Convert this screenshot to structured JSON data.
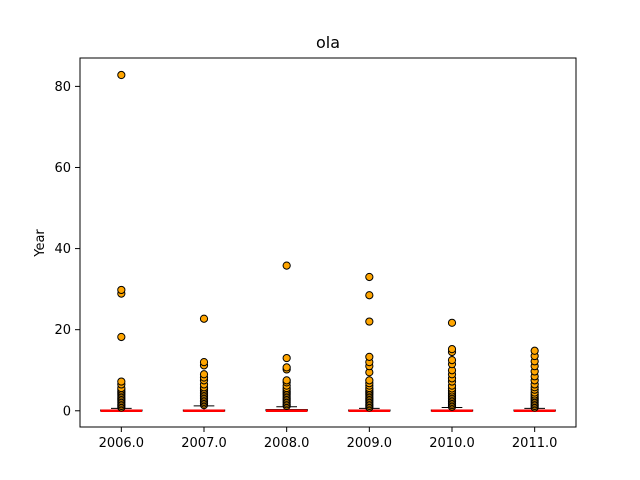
{
  "chart_data": {
    "type": "box",
    "title": "ola",
    "xlabel": "",
    "ylabel": "Year",
    "ylim": [
      -4,
      87
    ],
    "yticks": [
      0,
      20,
      40,
      60,
      80
    ],
    "grid": false,
    "colors": {
      "median": "#ff0000",
      "flier_fill": "#ffa500",
      "flier_edge": "#000000",
      "box": "#000000"
    },
    "categories": [
      "2006.0",
      "2007.0",
      "2008.0",
      "2009.0",
      "2010.0",
      "2011.0"
    ],
    "boxes": [
      {
        "label": "2006.0",
        "q1": 0.0,
        "median": 0.0,
        "q3": 0.2,
        "whisker_low": 0.0,
        "whisker_high": 0.6,
        "fliers": [
          0.8,
          1.2,
          1.6,
          2.0,
          2.4,
          2.8,
          3.2,
          3.6,
          4.0,
          4.4,
          4.8,
          5.2,
          5.6,
          6.5,
          7.2,
          18.2,
          28.9,
          29.8,
          82.8
        ]
      },
      {
        "label": "2007.0",
        "q1": 0.0,
        "median": 0.0,
        "q3": 0.2,
        "whisker_low": 0.0,
        "whisker_high": 1.2,
        "fliers": [
          1.4,
          1.8,
          2.2,
          2.6,
          3.0,
          3.4,
          3.8,
          4.2,
          4.6,
          5.0,
          5.4,
          5.8,
          6.5,
          7.5,
          8.2,
          9.0,
          11.2,
          12.0,
          22.7
        ]
      },
      {
        "label": "2008.0",
        "q1": 0.0,
        "median": 0.0,
        "q3": 0.3,
        "whisker_low": 0.0,
        "whisker_high": 1.0,
        "fliers": [
          1.2,
          1.6,
          2.0,
          2.4,
          2.8,
          3.2,
          3.6,
          4.0,
          4.4,
          4.8,
          5.2,
          5.6,
          6.2,
          7.0,
          7.5,
          10.2,
          10.7,
          13.0,
          35.8
        ]
      },
      {
        "label": "2009.0",
        "q1": 0.0,
        "median": 0.0,
        "q3": 0.2,
        "whisker_low": 0.0,
        "whisker_high": 0.6,
        "fliers": [
          0.8,
          1.2,
          1.6,
          2.0,
          2.4,
          2.8,
          3.2,
          3.6,
          4.0,
          4.4,
          4.8,
          5.2,
          5.6,
          6.2,
          6.8,
          7.5,
          9.5,
          11.0,
          12.0,
          13.3,
          22.0,
          28.5,
          33.0
        ]
      },
      {
        "label": "2010.0",
        "q1": 0.0,
        "median": 0.0,
        "q3": 0.2,
        "whisker_low": 0.0,
        "whisker_high": 0.8,
        "fliers": [
          1.0,
          1.4,
          1.8,
          2.2,
          2.6,
          3.0,
          3.4,
          3.8,
          4.2,
          4.6,
          5.0,
          5.5,
          6.2,
          7.2,
          8.0,
          9.0,
          10.0,
          11.5,
          12.5,
          14.5,
          15.2,
          21.7
        ]
      },
      {
        "label": "2011.0",
        "q1": 0.0,
        "median": 0.0,
        "q3": 0.2,
        "whisker_low": 0.0,
        "whisker_high": 0.6,
        "fliers": [
          0.8,
          1.2,
          1.6,
          2.0,
          2.4,
          2.8,
          3.2,
          3.6,
          4.0,
          4.5,
          5.2,
          5.8,
          6.5,
          7.5,
          8.5,
          9.7,
          11.0,
          12.2,
          13.5,
          14.8
        ]
      }
    ]
  }
}
